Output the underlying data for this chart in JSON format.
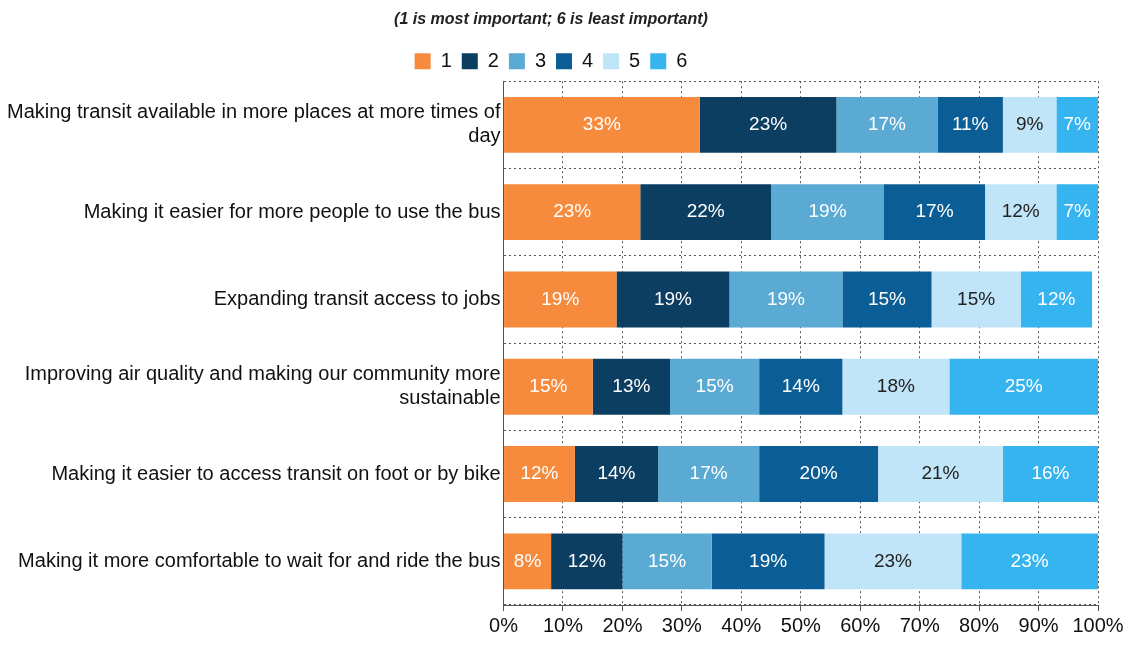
{
  "chart_data": {
    "type": "bar",
    "orientation": "horizontal",
    "stacked": true,
    "title": "(1 is most important; 6 is least important)",
    "categories": [
      "Making transit available in more places at more times of day",
      "Making it easier for more people to use the bus",
      "Expanding transit access to jobs",
      "Improving air quality and making our community more sustainable",
      "Making it easier to access transit on foot or by bike",
      "Making it more comfortable to wait for and ride the bus"
    ],
    "series": [
      {
        "name": "1",
        "color": "#f68b3e",
        "values": [
          33,
          23,
          19,
          15,
          12,
          8
        ],
        "value_labels": [
          "33%",
          "23%",
          "19%",
          "15%",
          "12%",
          "8%"
        ]
      },
      {
        "name": "2",
        "color": "#0c3e62",
        "values": [
          23,
          22,
          19,
          13,
          14,
          12
        ],
        "value_labels": [
          "23%",
          "22%",
          "19%",
          "13%",
          "14%",
          "12%"
        ]
      },
      {
        "name": "3",
        "color": "#5aaad3",
        "values": [
          17,
          19,
          19,
          15,
          17,
          15
        ],
        "value_labels": [
          "17%",
          "19%",
          "19%",
          "15%",
          "17%",
          "15%"
        ]
      },
      {
        "name": "4",
        "color": "#0b5e95",
        "values": [
          11,
          17,
          15,
          14,
          20,
          19
        ],
        "value_labels": [
          "11%",
          "17%",
          "15%",
          "14%",
          "20%",
          "19%"
        ]
      },
      {
        "name": "5",
        "color": "#c0e4f8",
        "values": [
          9,
          12,
          15,
          18,
          21,
          23
        ],
        "value_labels": [
          "9%",
          "12%",
          "15%",
          "18%",
          "21%",
          "23%"
        ]
      },
      {
        "name": "6",
        "color": "#36b4ef",
        "values": [
          7,
          7,
          12,
          25,
          16,
          23
        ],
        "value_labels": [
          "7%",
          "7%",
          "12%",
          "25%",
          "16%",
          "23%"
        ]
      }
    ],
    "xlim": [
      0,
      100
    ],
    "xticks": [
      {
        "value": 0,
        "label": "0%"
      },
      {
        "value": 10,
        "label": "10%"
      },
      {
        "value": 20,
        "label": "20%"
      },
      {
        "value": 30,
        "label": "30%"
      },
      {
        "value": 40,
        "label": "40%"
      },
      {
        "value": 50,
        "label": "50%"
      },
      {
        "value": 60,
        "label": "60%"
      },
      {
        "value": 70,
        "label": "70%"
      },
      {
        "value": 80,
        "label": "80%"
      },
      {
        "value": 90,
        "label": "90%"
      },
      {
        "value": 100,
        "label": "100%"
      }
    ],
    "grid": true,
    "legend": "top"
  }
}
